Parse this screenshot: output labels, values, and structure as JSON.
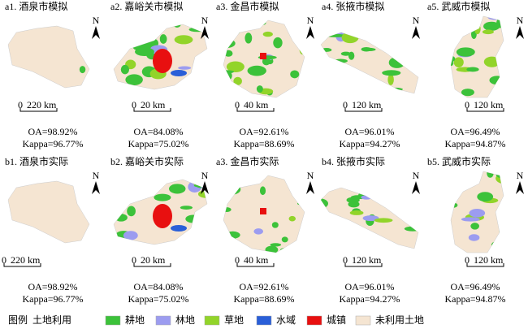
{
  "panels": [
    {
      "title": "a1. 酒泉市模拟",
      "scale_zero": "0",
      "scale": "220 km",
      "oa": "OA=98.92%",
      "kappa": "Kappa=96.77%"
    },
    {
      "title": "a2. 嘉峪关市模拟",
      "scale_zero": "0",
      "scale": "20 km",
      "oa": "OA=84.08%",
      "kappa": "Kappa=75.02%"
    },
    {
      "title": "a3. 金昌市模拟",
      "scale_zero": "0",
      "scale": "40 km",
      "oa": "OA=92.61%",
      "kappa": "Kappa=88.69%"
    },
    {
      "title": "a4. 张掖市模拟",
      "scale_zero": "0",
      "scale": "120 km",
      "oa": "OA=96.01%",
      "kappa": "Kappa=94.27%"
    },
    {
      "title": "a5. 武威市模拟",
      "scale_zero": "0",
      "scale": "120 km",
      "oa": "OA=96.49%",
      "kappa": "Kappa=94.87%"
    },
    {
      "title": "b1. 酒泉市实际",
      "scale_zero": "0",
      "scale": "220 km",
      "oa": "OA=98.92%",
      "kappa": "Kappa=96.77%"
    },
    {
      "title": "b2. 嘉峪关市实际",
      "scale_zero": "0",
      "scale": "20 km",
      "oa": "OA=84.08%",
      "kappa": "Kappa=75.02%"
    },
    {
      "title": "a3. 金昌市实际",
      "scale_zero": "0",
      "scale": "40 km",
      "oa": "OA=92.61%",
      "kappa": "Kappa=88.69%"
    },
    {
      "title": "b4. 张掖市实际",
      "scale_zero": "0",
      "scale": "120 km",
      "oa": "OA=96.01%",
      "kappa": "Kappa=94.27%"
    },
    {
      "title": "b5. 武威市实际",
      "scale_zero": "0",
      "scale": "120 km",
      "oa": "OA=96.49%",
      "kappa": "Kappa=94.87%"
    }
  ],
  "north": "N",
  "legend": {
    "title": "图例",
    "subtitle": "土地利用",
    "items": [
      {
        "label": "耕地",
        "color": "#3cc23a"
      },
      {
        "label": "林地",
        "color": "#9c9cf0"
      },
      {
        "label": "草地",
        "color": "#92d42a"
      },
      {
        "label": "水域",
        "color": "#2a5fd8"
      },
      {
        "label": "城镇",
        "color": "#e81010"
      },
      {
        "label": "未利用土地",
        "color": "#f5e5d2"
      }
    ]
  }
}
